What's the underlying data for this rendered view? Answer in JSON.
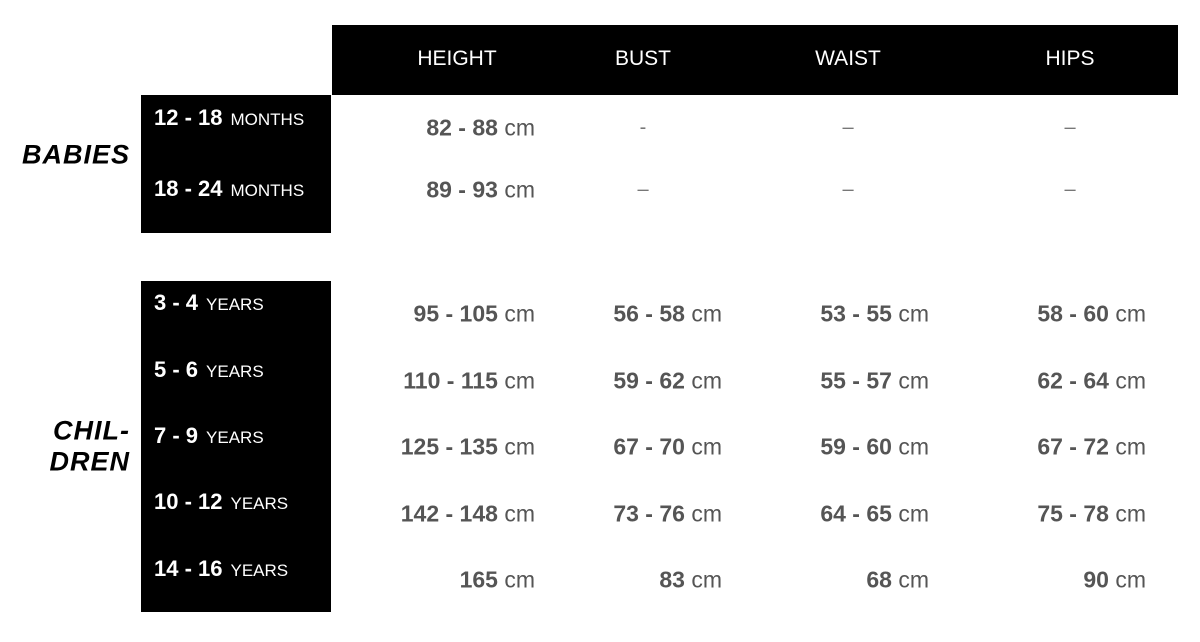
{
  "header": {
    "columns": [
      "HEIGHT",
      "BUST",
      "WAIST",
      "HIPS"
    ]
  },
  "groups": [
    {
      "label": [
        "BABIES"
      ],
      "rows": [
        {
          "size": "12 - 18",
          "unit": "MONTHS",
          "cells": [
            {
              "range": "82 - 88",
              "unit": "cm"
            },
            {
              "text": "-"
            },
            {
              "text": "–"
            },
            {
              "text": "–"
            }
          ]
        },
        {
          "size": "18 - 24",
          "unit": "MONTHS",
          "cells": [
            {
              "range": "89 - 93",
              "unit": "cm"
            },
            {
              "text": "–"
            },
            {
              "text": "–"
            },
            {
              "text": "–"
            }
          ]
        }
      ]
    },
    {
      "label": [
        "CHIL-",
        "DREN"
      ],
      "rows": [
        {
          "size": "3 - 4",
          "unit": "YEARS",
          "cells": [
            {
              "range": "95 - 105",
              "unit": "cm"
            },
            {
              "range": "56 - 58",
              "unit": "cm"
            },
            {
              "range": "53 - 55",
              "unit": "cm"
            },
            {
              "range": "58 - 60",
              "unit": "cm"
            }
          ]
        },
        {
          "size": "5 - 6",
          "unit": "YEARS",
          "cells": [
            {
              "range": "110 - 115",
              "unit": "cm"
            },
            {
              "range": "59 - 62",
              "unit": "cm"
            },
            {
              "range": "55 - 57",
              "unit": "cm"
            },
            {
              "range": "62 - 64",
              "unit": "cm"
            }
          ]
        },
        {
          "size": "7 - 9",
          "unit": "YEARS",
          "cells": [
            {
              "range": "125 - 135",
              "unit": "cm"
            },
            {
              "range": "67 - 70",
              "unit": "cm"
            },
            {
              "range": "59 - 60",
              "unit": "cm"
            },
            {
              "range": "67 - 72",
              "unit": "cm"
            }
          ]
        },
        {
          "size": "10 - 12",
          "unit": "YEARS",
          "cells": [
            {
              "range": "142 - 148",
              "unit": "cm"
            },
            {
              "range": "73 - 76",
              "unit": "cm"
            },
            {
              "range": "64 - 65",
              "unit": "cm"
            },
            {
              "range": "75 - 78",
              "unit": "cm"
            }
          ]
        },
        {
          "size": "14 - 16",
          "unit": "YEARS",
          "cells": [
            {
              "range": "165",
              "unit": "cm"
            },
            {
              "range": "83",
              "unit": "cm"
            },
            {
              "range": "68",
              "unit": "cm"
            },
            {
              "range": "90",
              "unit": "cm"
            }
          ]
        }
      ]
    }
  ]
}
